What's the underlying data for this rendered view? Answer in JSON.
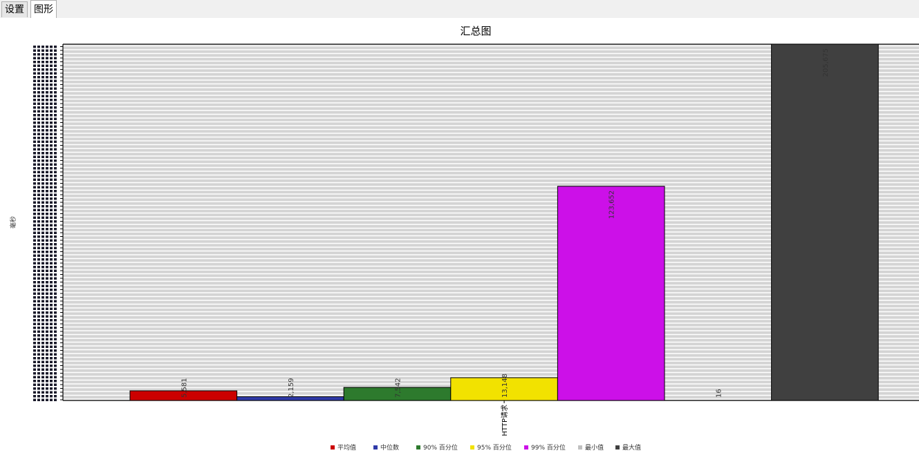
{
  "tabs": [
    {
      "label": "设置",
      "active": false
    },
    {
      "label": "图形",
      "active": true
    }
  ],
  "chart_data": {
    "type": "bar",
    "title": "汇总图",
    "ylabel": "毫秒",
    "categories": [
      "HTTP请求"
    ],
    "series": [
      {
        "name": "平均值",
        "color": "#cc0000",
        "values": [
          5581
        ]
      },
      {
        "name": "中位数",
        "color": "#2f3aa8",
        "values": [
          2159
        ]
      },
      {
        "name": "90% 百分位",
        "color": "#2d7a2d",
        "values": [
          7542
        ]
      },
      {
        "name": "95% 百分位",
        "color": "#f2e200",
        "values": [
          13148
        ]
      },
      {
        "name": "99% 百分位",
        "color": "#cc10e8",
        "values": [
          123652
        ]
      },
      {
        "name": "最小值",
        "color": "#c0c0c0",
        "values": [
          16
        ]
      },
      {
        "name": "最大值",
        "color": "#404040",
        "values": [
          205675
        ]
      }
    ],
    "value_labels": [
      "5,581",
      "2,159",
      "7,542",
      "13,148",
      "123,652",
      "16",
      "205,675"
    ],
    "ylim": [
      0,
      205675
    ],
    "grid": true,
    "legend": "bottom"
  }
}
